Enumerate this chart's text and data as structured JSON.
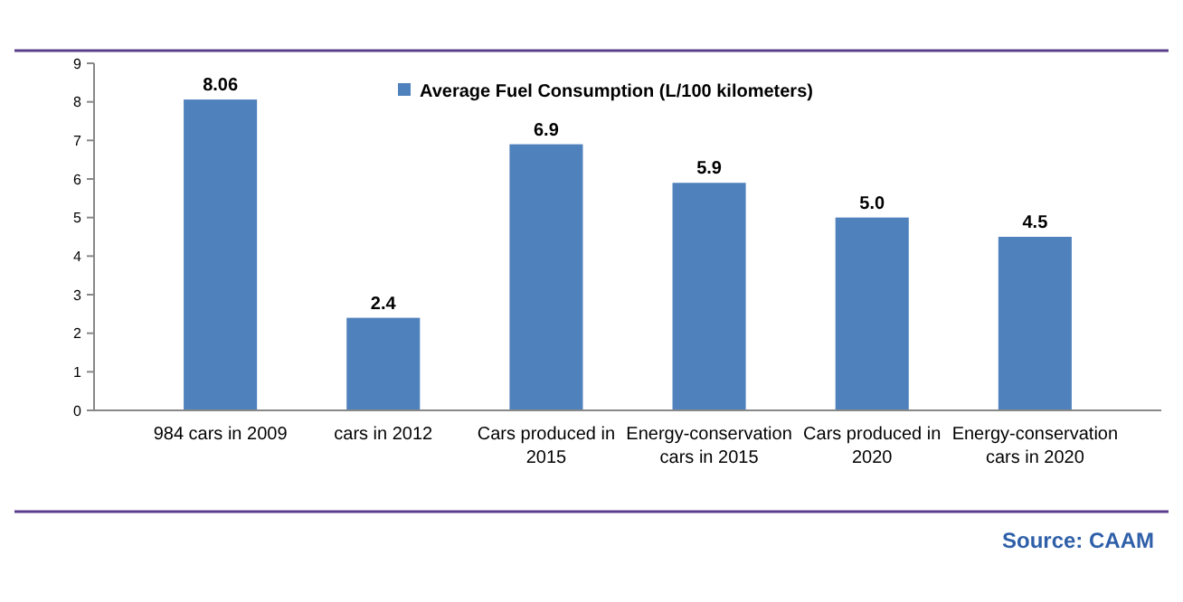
{
  "chart_data": {
    "type": "bar",
    "categories": [
      "984 cars in 2009",
      "cars in 2012",
      "Cars produced in 2015",
      "Energy-conservation cars in 2015",
      "Cars produced in 2020",
      "Energy-conservation cars in 2020"
    ],
    "series": [
      {
        "name": "Average Fuel Consumption (L/100 kilometers)",
        "color": "#4f81bd",
        "values": [
          8.06,
          2.4,
          6.9,
          5.9,
          5.0,
          4.5
        ]
      }
    ],
    "value_labels": [
      "8.06",
      "2.4",
      "6.9",
      "5.9",
      "5.0",
      "4.5"
    ],
    "ylim": [
      0,
      9
    ],
    "yticks": [
      0,
      1,
      2,
      3,
      4,
      5,
      6,
      7,
      8,
      9
    ],
    "legend": "top",
    "annotations": [
      "Source: CAAM"
    ]
  }
}
